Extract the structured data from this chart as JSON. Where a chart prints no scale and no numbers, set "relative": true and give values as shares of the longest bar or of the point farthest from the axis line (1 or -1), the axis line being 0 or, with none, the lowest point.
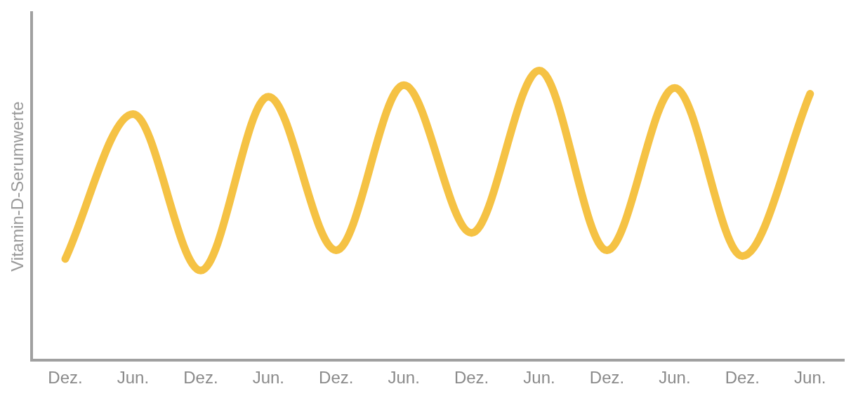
{
  "chart_data": {
    "type": "line",
    "relative": true,
    "ylabel": "Vitamin-D-Serumwerte",
    "categories": [
      "Dez.",
      "Jun.",
      "Dez.",
      "Jun.",
      "Dez.",
      "Jun.",
      "Dez.",
      "Jun.",
      "Dez.",
      "Jun.",
      "Dez.",
      "Jun."
    ],
    "series": [
      {
        "color": "#f5c244",
        "values": [
          0.35,
          0.85,
          0.31,
          0.91,
          0.38,
          0.95,
          0.44,
          1.0,
          0.38,
          0.94,
          0.36,
          0.92
        ]
      }
    ],
    "grid": false,
    "legend": false,
    "marker": "none",
    "line_style": "solid"
  }
}
